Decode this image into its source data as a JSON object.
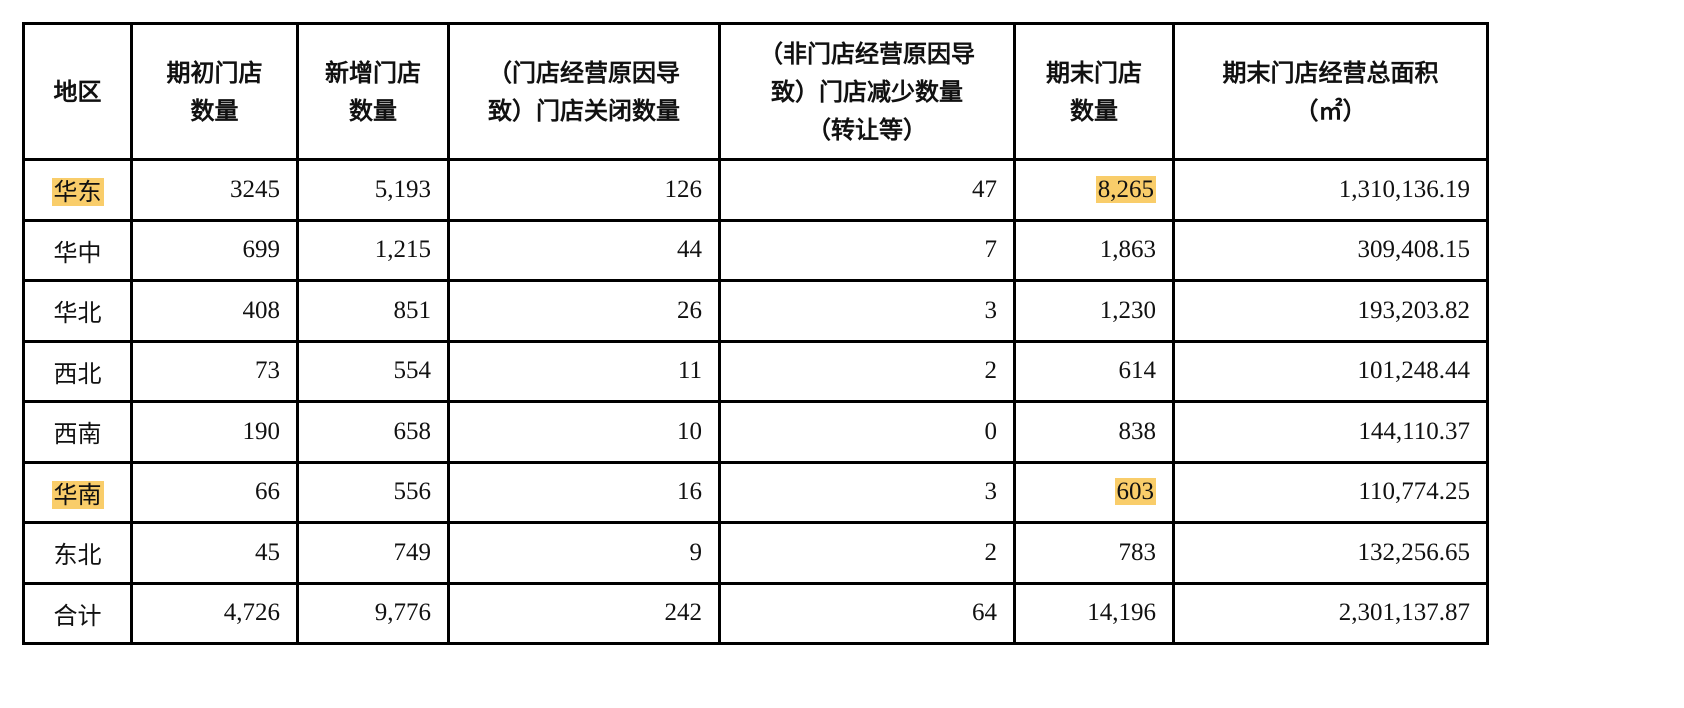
{
  "table": {
    "headers": [
      "地区",
      "期初门店\n数量",
      "新增门店\n数量",
      "（门店经营原因导\n致）门店关闭数量",
      "（非门店经营原因导\n致）门店减少数量\n（转让等）",
      "期末门店\n数量",
      "期末门店经营总面积\n（㎡）"
    ],
    "highlight_color": "#f9cd6a",
    "rows": [
      {
        "region": "华东",
        "cells": [
          "3245",
          "5,193",
          "126",
          "47",
          "8,265",
          "1,310,136.19"
        ],
        "highlight_region": true,
        "highlight_col": 4
      },
      {
        "region": "华中",
        "cells": [
          "699",
          "1,215",
          "44",
          "7",
          "1,863",
          "309,408.15"
        ]
      },
      {
        "region": "华北",
        "cells": [
          "408",
          "851",
          "26",
          "3",
          "1,230",
          "193,203.82"
        ]
      },
      {
        "region": "西北",
        "cells": [
          "73",
          "554",
          "11",
          "2",
          "614",
          "101,248.44"
        ]
      },
      {
        "region": "西南",
        "cells": [
          "190",
          "658",
          "10",
          "0",
          "838",
          "144,110.37"
        ]
      },
      {
        "region": "华南",
        "cells": [
          "66",
          "556",
          "16",
          "3",
          "603",
          "110,774.25"
        ],
        "highlight_region": true,
        "highlight_col": 4
      },
      {
        "region": "东北",
        "cells": [
          "45",
          "749",
          "9",
          "2",
          "783",
          "132,256.65"
        ]
      },
      {
        "region": "合计",
        "cells": [
          "4,726",
          "9,776",
          "242",
          "64",
          "14,196",
          "2,301,137.87"
        ]
      }
    ]
  }
}
